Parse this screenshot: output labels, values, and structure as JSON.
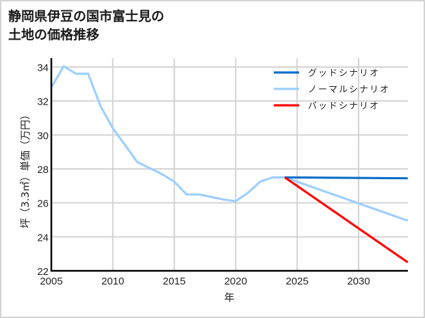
{
  "title": "静岡県伊豆の国市富士見の\n土地の価格推移",
  "chart_data": {
    "type": "line",
    "title": "静岡県伊豆の国市富士見の土地の価格推移",
    "xlabel": "年",
    "ylabel": "坪（3.3㎡）単価（万円）",
    "xlim": [
      2005,
      2034
    ],
    "ylim": [
      22,
      34.6
    ],
    "xticks": [
      2005,
      2010,
      2015,
      2020,
      2025,
      2030
    ],
    "yticks": [
      22,
      24,
      26,
      28,
      30,
      32,
      34
    ],
    "grid": true,
    "legend_position": "upper right",
    "series": [
      {
        "name": "グッドシナリオ",
        "color": "#0a6fc7",
        "x": [
          2024,
          2034
        ],
        "y": [
          27.5,
          27.45
        ]
      },
      {
        "name": "ノーマルシナリオ",
        "color": "#9ccfff",
        "x": [
          2005,
          2006,
          2007,
          2008,
          2009,
          2010,
          2011,
          2012,
          2013,
          2014,
          2015,
          2016,
          2017,
          2018,
          2019,
          2020,
          2021,
          2022,
          2023,
          2024,
          2034
        ],
        "y": [
          32.8,
          34.05,
          33.6,
          33.6,
          31.7,
          30.4,
          29.4,
          28.4,
          28.05,
          27.7,
          27.25,
          26.5,
          26.5,
          26.35,
          26.2,
          26.1,
          26.6,
          27.25,
          27.5,
          27.5,
          24.95
        ]
      },
      {
        "name": "バッドシナリオ",
        "color": "#ff0000",
        "x": [
          2024,
          2034
        ],
        "y": [
          27.5,
          22.5
        ]
      }
    ]
  }
}
